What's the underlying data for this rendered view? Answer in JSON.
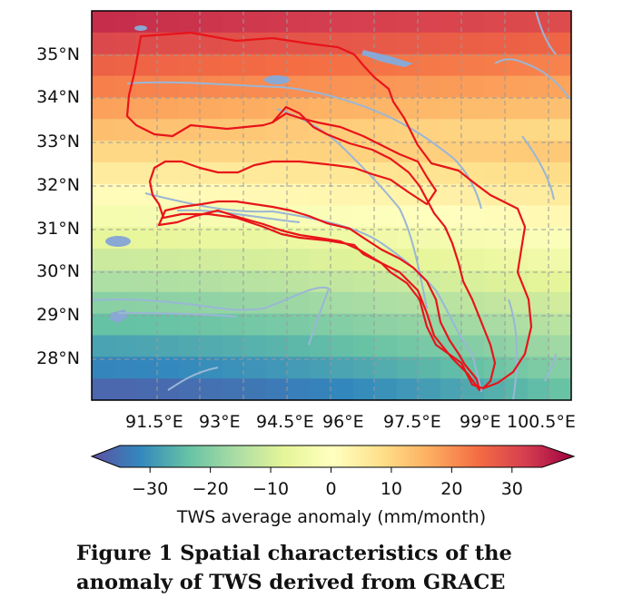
{
  "map": {
    "lat_labels": [
      "35°N",
      "34°N",
      "33°N",
      "32°N",
      "31°N",
      "30°N",
      "29°N",
      "28°N"
    ],
    "lon_labels": [
      "91.5°E",
      "93°E",
      "94.5°E",
      "96°E",
      "97.5°E",
      "99°E",
      "100.5°E"
    ],
    "colors": {
      "basin_outline": "#e8141a",
      "rivers": "#9ab6d6",
      "lakes": "#8aa8d4",
      "gridlines": "#9a9a9a"
    }
  },
  "colorbar": {
    "ticks": [
      "−30",
      "−20",
      "−10",
      "0",
      "10",
      "20",
      "30"
    ],
    "tick_values": [
      -30,
      -20,
      -10,
      0,
      10,
      20,
      30
    ],
    "range": [
      -35,
      35
    ],
    "label": "TWS average anomaly (mm/month)",
    "colormap": [
      "#5e4fa2",
      "#3288bd",
      "#66c2a5",
      "#abdda4",
      "#e6f598",
      "#ffffbf",
      "#fee08b",
      "#fdae61",
      "#f46d43",
      "#d53e4f",
      "#9e0142"
    ]
  },
  "caption": {
    "line1": "Figure 1  Spatial characteristics of the",
    "line2": "anomaly of TWS derived from GRACE"
  }
}
